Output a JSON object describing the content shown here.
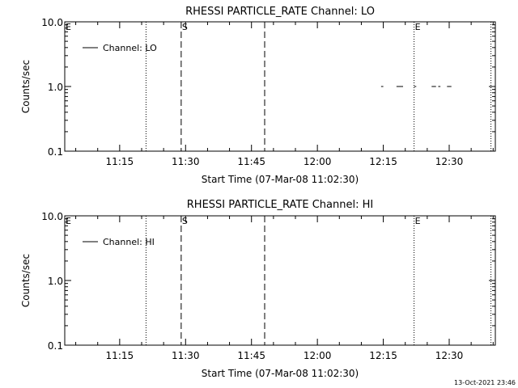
{
  "footer_timestamp": "13-Oct-2021 23:46",
  "chart_data": [
    {
      "type": "line",
      "title": "RHESSI PARTICLE_RATE Channel: LO",
      "xlabel": "Start Time (07-Mar-08 11:02:30)",
      "ylabel": "Counts/sec",
      "yscale": "log",
      "ylim": [
        0.1,
        10.0
      ],
      "xlim": [
        "11:02:30",
        "12:40:30"
      ],
      "x_ticks": [
        "11:15",
        "11:30",
        "11:45",
        "12:00",
        "12:15",
        "12:30"
      ],
      "y_ticks": [
        "0.1",
        "1.0",
        "10.0"
      ],
      "legend": {
        "label": "Channel: LO",
        "position": "top-left"
      },
      "series": [
        {
          "name": "Channel: LO",
          "segments": [
            {
              "x": [
                "12:14:30",
                "12:15:00"
              ],
              "y": [
                1.0,
                1.0
              ]
            },
            {
              "x": [
                "12:18:00",
                "12:19:30"
              ],
              "y": [
                1.0,
                1.0
              ]
            },
            {
              "x": [
                "12:22:00",
                "12:22:30"
              ],
              "y": [
                1.0,
                1.0
              ]
            },
            {
              "x": [
                "12:26:00",
                "12:27:00"
              ],
              "y": [
                1.0,
                1.0
              ]
            },
            {
              "x": [
                "12:27:30",
                "12:28:00"
              ],
              "y": [
                1.0,
                1.0
              ]
            },
            {
              "x": [
                "12:29:30",
                "12:30:30"
              ],
              "y": [
                1.0,
                1.0
              ]
            }
          ]
        }
      ],
      "vlines": [
        {
          "x": "11:21:00",
          "style": "dotted",
          "label": ""
        },
        {
          "x": "11:29:00",
          "style": "dashed",
          "label": "S"
        },
        {
          "x": "11:48:00",
          "style": "dashed",
          "label": ""
        },
        {
          "x": "12:22:00",
          "style": "dotted",
          "label": "E"
        },
        {
          "x": "12:39:30",
          "style": "dotted",
          "label": ""
        }
      ],
      "corner_label": "E"
    },
    {
      "type": "line",
      "title": "RHESSI PARTICLE_RATE Channel: HI",
      "xlabel": "Start Time (07-Mar-08 11:02:30)",
      "ylabel": "Counts/sec",
      "yscale": "log",
      "ylim": [
        0.1,
        10.0
      ],
      "xlim": [
        "11:02:30",
        "12:40:30"
      ],
      "x_ticks": [
        "11:15",
        "11:30",
        "11:45",
        "12:00",
        "12:15",
        "12:30"
      ],
      "y_ticks": [
        "0.1",
        "1.0",
        "10.0"
      ],
      "legend": {
        "label": "Channel: HI",
        "position": "top-left"
      },
      "series": [
        {
          "name": "Channel: HI",
          "segments": []
        }
      ],
      "vlines": [
        {
          "x": "11:21:00",
          "style": "dotted",
          "label": ""
        },
        {
          "x": "11:29:00",
          "style": "dashed",
          "label": "S"
        },
        {
          "x": "11:48:00",
          "style": "dashed",
          "label": ""
        },
        {
          "x": "12:22:00",
          "style": "dotted",
          "label": "E"
        },
        {
          "x": "12:39:30",
          "style": "dotted",
          "label": ""
        }
      ],
      "corner_label": "E"
    }
  ]
}
